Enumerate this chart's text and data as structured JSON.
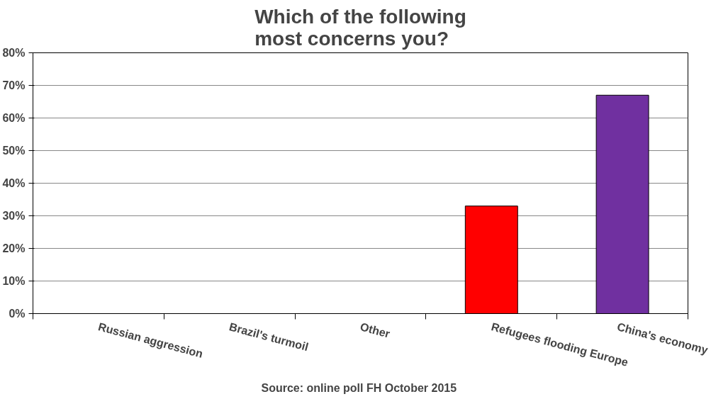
{
  "chart_data": {
    "type": "bar",
    "title": "Which of the following\nmost concerns you?",
    "categories": [
      "Russian aggression",
      "Brazil's turmoil",
      "Other",
      "Refugees flooding Europe",
      "China's economy"
    ],
    "values": [
      0,
      0,
      0,
      33,
      67
    ],
    "colors": [
      "#ff0000",
      "#ff0000",
      "#ff0000",
      "#ff0000",
      "#7030a0"
    ],
    "ylim": [
      0,
      80
    ],
    "yticks": [
      {
        "value": 0,
        "label": "0%"
      },
      {
        "value": 10,
        "label": "10%"
      },
      {
        "value": 20,
        "label": "20%"
      },
      {
        "value": 30,
        "label": "30%"
      },
      {
        "value": 40,
        "label": "40%"
      },
      {
        "value": 50,
        "label": "50%"
      },
      {
        "value": 60,
        "label": "60%"
      },
      {
        "value": 70,
        "label": "70%"
      },
      {
        "value": 80,
        "label": "80%"
      }
    ],
    "grid": "y",
    "legend": false,
    "annotations": [
      "Source:  online poll FH October 2015"
    ]
  }
}
